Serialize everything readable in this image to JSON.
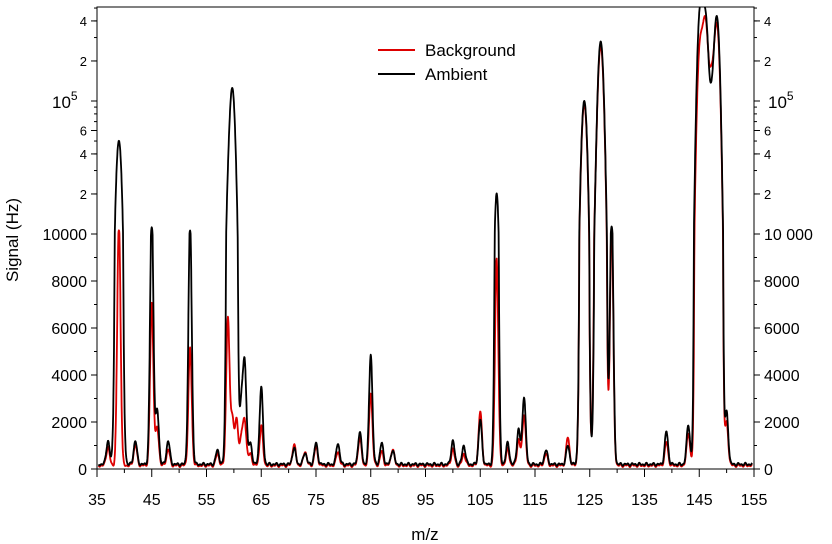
{
  "chart_data": {
    "type": "line",
    "xlabel": "m/z",
    "ylabel": "Signal (Hz)",
    "xlim": [
      35,
      155
    ],
    "x_ticks": [
      "35",
      "45",
      "55",
      "65",
      "75",
      "85",
      "95",
      "105",
      "115",
      "125",
      "135",
      "145",
      "155"
    ],
    "y_scale": "linear 0–10000, logarithmic 10000–500000",
    "y_linear_ticks_left": [
      "0",
      "2000",
      "4000",
      "6000",
      "8000",
      "10000"
    ],
    "y_linear_ticks_right": [
      "0",
      "2000",
      "4000",
      "6000",
      "8000",
      "10 000"
    ],
    "y_log_ticks": [
      "2",
      "4",
      "6",
      "10^5",
      "2",
      "4"
    ],
    "legend": {
      "placement": "top-center",
      "entries": [
        "Background",
        "Ambient"
      ]
    },
    "grid": false,
    "series": [
      {
        "name": "Background",
        "color": "#dd0000",
        "baseline": 150,
        "peaks": [
          [
            37,
            800
          ],
          [
            39,
            10500
          ],
          [
            42,
            900
          ],
          [
            45,
            6900
          ],
          [
            46,
            1600
          ],
          [
            48,
            700
          ],
          [
            52,
            5000
          ],
          [
            57,
            500
          ],
          [
            58.9,
            6300
          ],
          [
            59.7,
            2000
          ],
          [
            60.5,
            1900
          ],
          [
            61.4,
            1200
          ],
          [
            62,
            1800
          ],
          [
            63,
            500
          ],
          [
            65,
            1700
          ],
          [
            71,
            900
          ],
          [
            73,
            600
          ],
          [
            75,
            800
          ],
          [
            79,
            600
          ],
          [
            83,
            1200
          ],
          [
            85,
            3100
          ],
          [
            87,
            600
          ],
          [
            89,
            700
          ],
          [
            100,
            700
          ],
          [
            102,
            500
          ],
          [
            105,
            2300
          ],
          [
            108,
            8800
          ],
          [
            110,
            700
          ],
          [
            112,
            1100
          ],
          [
            113,
            2200
          ],
          [
            117,
            500
          ],
          [
            121,
            1200
          ],
          [
            124,
            95000
          ],
          [
            126,
            6500
          ],
          [
            127,
            260000
          ],
          [
            128,
            2000
          ],
          [
            129,
            10500
          ],
          [
            139,
            1000
          ],
          [
            143,
            1400
          ],
          [
            145.2,
            270000
          ],
          [
            146.1,
            400000
          ],
          [
            147.2,
            150000
          ],
          [
            148.2,
            380000
          ],
          [
            150,
            1800
          ]
        ]
      },
      {
        "name": "Ambient",
        "color": "#000000",
        "baseline": 200,
        "peaks": [
          [
            37,
            1000
          ],
          [
            39,
            50000
          ],
          [
            42,
            1000
          ],
          [
            45,
            11000
          ],
          [
            46,
            2300
          ],
          [
            48,
            1000
          ],
          [
            52,
            10400
          ],
          [
            57,
            600
          ],
          [
            58.9,
            10100
          ],
          [
            59.7,
            125000
          ],
          [
            60.5,
            2700
          ],
          [
            61.4,
            2600
          ],
          [
            62,
            4100
          ],
          [
            63,
            900
          ],
          [
            65,
            3300
          ],
          [
            71,
            700
          ],
          [
            73,
            500
          ],
          [
            75,
            900
          ],
          [
            79,
            900
          ],
          [
            83,
            1400
          ],
          [
            85,
            4700
          ],
          [
            87,
            900
          ],
          [
            89,
            600
          ],
          [
            100,
            1000
          ],
          [
            102,
            800
          ],
          [
            105,
            1900
          ],
          [
            108,
            20000
          ],
          [
            110,
            900
          ],
          [
            112,
            1500
          ],
          [
            113,
            2900
          ],
          [
            117,
            600
          ],
          [
            121,
            800
          ],
          [
            124,
            100000
          ],
          [
            126,
            4800
          ],
          [
            127,
            280000
          ],
          [
            128,
            2700
          ],
          [
            129,
            11200
          ],
          [
            139,
            1400
          ],
          [
            143,
            1700
          ],
          [
            145.2,
            500000
          ],
          [
            146.1,
            440000
          ],
          [
            147.2,
            100000
          ],
          [
            148.2,
            430000
          ],
          [
            150,
            2200
          ]
        ]
      }
    ]
  }
}
